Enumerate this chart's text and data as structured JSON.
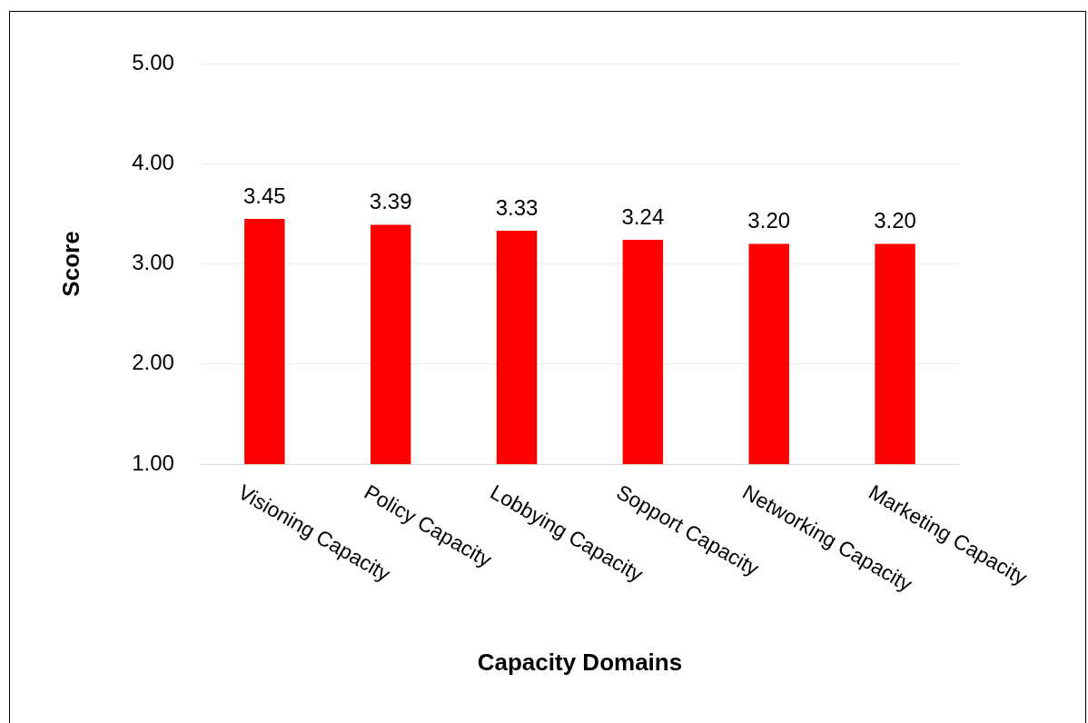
{
  "chart_data": {
    "type": "bar",
    "xlabel": "Capacity Domains",
    "ylabel": "Score",
    "categories": [
      "Visioning Capacity",
      "Policy Capacity",
      "Lobbying Capacity",
      "Sopport Capacity",
      "Networking Capacity",
      "Marketing Capacity"
    ],
    "values": [
      3.45,
      3.39,
      3.33,
      3.24,
      3.2,
      3.2
    ],
    "value_labels": [
      "3.45",
      "3.39",
      "3.33",
      "3.24",
      "3.20",
      "3.20"
    ],
    "color": "#ff0000",
    "ylim": [
      1,
      5
    ],
    "yticks": [
      {
        "value": 1,
        "label": "1.00"
      },
      {
        "value": 2,
        "label": "2.00"
      },
      {
        "value": 3,
        "label": "3.00"
      },
      {
        "value": 4,
        "label": "4.00"
      },
      {
        "value": 5,
        "label": "5.00"
      }
    ],
    "grid": "y",
    "legend": false
  }
}
